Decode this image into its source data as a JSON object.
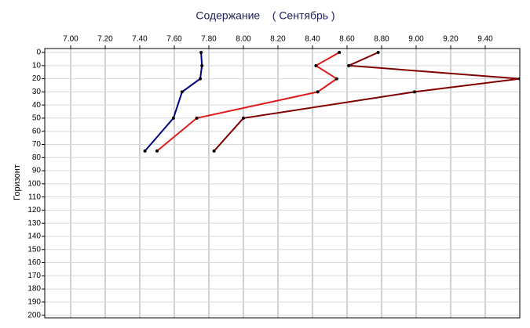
{
  "chart_data": {
    "type": "line",
    "title": "Содержание    ( Сентябрь )",
    "ylabel": "Горизонт",
    "y": [
      0,
      10,
      20,
      30,
      50,
      75
    ],
    "series": [
      {
        "color": "#000080",
        "values": [
          7.755,
          7.76,
          7.75,
          7.645,
          7.595,
          7.43
        ]
      },
      {
        "color": "#e01818",
        "values": [
          8.555,
          8.42,
          8.54,
          8.43,
          7.73,
          7.5
        ]
      },
      {
        "color": "#800000",
        "values": [
          8.78,
          8.61,
          9.6,
          8.99,
          8.0,
          7.83
        ]
      }
    ],
    "xlim": [
      6.85,
      9.6
    ],
    "xticks": [
      {
        "value": 7,
        "label": "7.00"
      },
      {
        "value": 7.2,
        "label": "7.20"
      },
      {
        "value": 7.4,
        "label": "7.40"
      },
      {
        "value": 7.6,
        "label": "7.60"
      },
      {
        "value": 7.8,
        "label": "7.80"
      },
      {
        "value": 8,
        "label": "8.00"
      },
      {
        "value": 8.2,
        "label": "8.20"
      },
      {
        "value": 8.4,
        "label": "8.40"
      },
      {
        "value": 8.6,
        "label": "8.60"
      },
      {
        "value": 8.8,
        "label": "8.80"
      },
      {
        "value": 9,
        "label": "9.00"
      },
      {
        "value": 9.2,
        "label": "9.20"
      },
      {
        "value": 9.4,
        "label": "9.40"
      }
    ],
    "ylim": [
      -3,
      202
    ],
    "yticks": [
      0,
      10,
      20,
      30,
      40,
      50,
      60,
      70,
      80,
      90,
      100,
      110,
      120,
      130,
      140,
      150,
      160,
      170,
      180,
      190,
      200
    ],
    "grid": true
  }
}
